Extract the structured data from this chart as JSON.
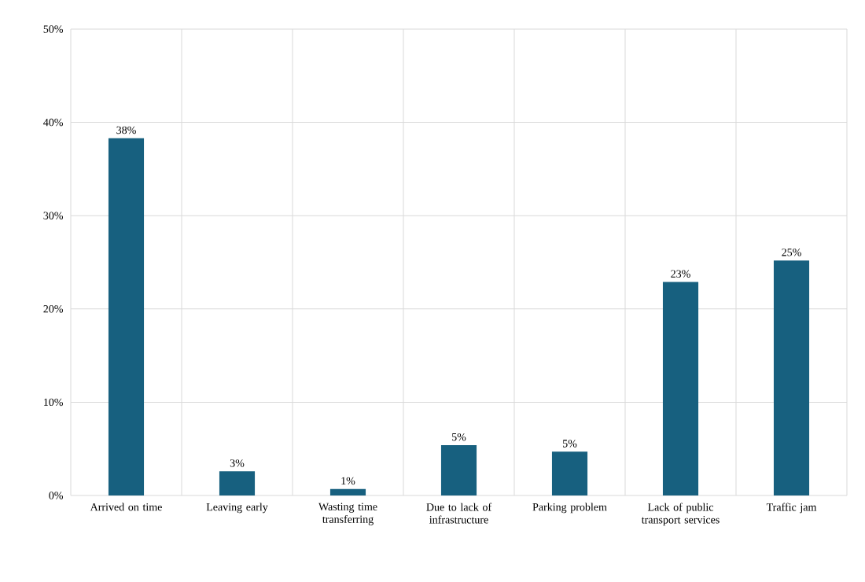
{
  "chart_data": {
    "type": "bar",
    "categories": [
      "Arrived on time",
      "Leaving early",
      "Wasting time transferring",
      "Due to lack of infrastructure",
      "Parking problem",
      "Lack of public transport services",
      "Traffic jam"
    ],
    "values": [
      38.3,
      2.6,
      0.7,
      5.4,
      4.7,
      22.9,
      25.2
    ],
    "value_labels": [
      "38%",
      "3%",
      "1%",
      "5%",
      "5%",
      "23%",
      "25%"
    ],
    "color": "#17607f",
    "ylim": [
      0,
      50
    ],
    "yticks": [
      {
        "value": 0,
        "label": "0%"
      },
      {
        "value": 10,
        "label": "10%"
      },
      {
        "value": 20,
        "label": "20%"
      },
      {
        "value": 30,
        "label": "30%"
      },
      {
        "value": 40,
        "label": "40%"
      },
      {
        "value": 50,
        "label": "50%"
      }
    ],
    "grid": true
  }
}
